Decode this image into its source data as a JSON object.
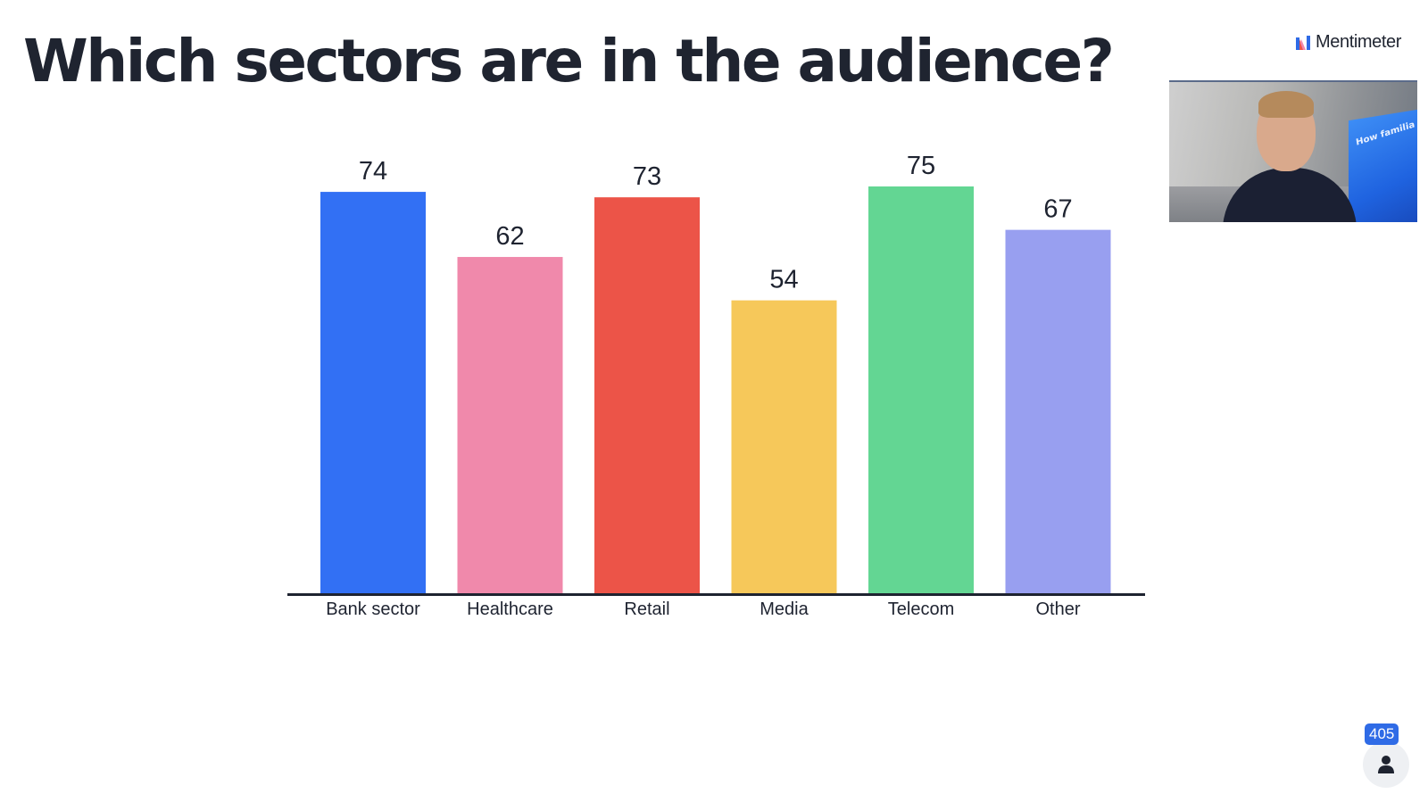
{
  "slide": {
    "title": "Which sectors are in the audience?"
  },
  "brand": {
    "name": "Mentimeter",
    "logo_icon": "mentimeter-logo-icon"
  },
  "video": {
    "screen_text": "How familia"
  },
  "participants": {
    "count": "405",
    "icon": "person-icon",
    "badge_color": "#2f6be6"
  },
  "chart_data": {
    "type": "bar",
    "title": "Which sectors are in the audience?",
    "categories": [
      "Bank sector",
      "Healthcare",
      "Retail",
      "Media",
      "Telecom",
      "Other"
    ],
    "values": [
      74,
      62,
      73,
      54,
      75,
      67
    ],
    "colors": [
      "#3270f4",
      "#f089ab",
      "#ec5448",
      "#f6c85a",
      "#63d693",
      "#989ff0"
    ],
    "data_labels": true,
    "grid": false,
    "legend": "none",
    "xlabel": "",
    "ylabel": ""
  }
}
